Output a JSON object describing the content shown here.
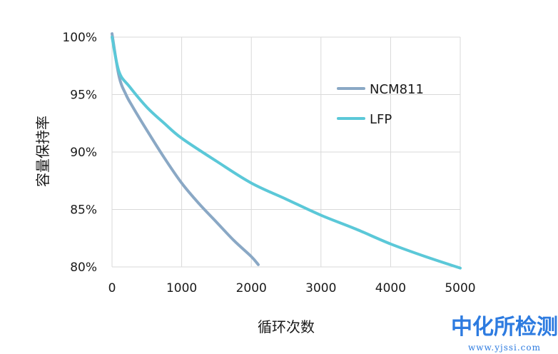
{
  "chart_data": {
    "type": "line",
    "xlabel": "循环次数",
    "ylabel": "容量保持率",
    "xlim": [
      0,
      5000
    ],
    "ylim": [
      80,
      100
    ],
    "x_ticks": [
      "0",
      "1000",
      "2000",
      "3000",
      "4000",
      "5000"
    ],
    "y_ticks": [
      "80%",
      "85%",
      "90%",
      "95%",
      "100%"
    ],
    "grid": "vertical and horizontal",
    "legend_position": "top-right",
    "series": [
      {
        "name": "NCM811",
        "color": "#8aa8c5",
        "points": [
          [
            0,
            100.3
          ],
          [
            100,
            96.6
          ],
          [
            200,
            95.0
          ],
          [
            300,
            93.9
          ],
          [
            500,
            91.9
          ],
          [
            750,
            89.5
          ],
          [
            1000,
            87.3
          ],
          [
            1250,
            85.5
          ],
          [
            1500,
            83.9
          ],
          [
            1750,
            82.3
          ],
          [
            2000,
            80.9
          ],
          [
            2100,
            80.2
          ]
        ]
      },
      {
        "name": "LFP",
        "color": "#5bc8d8",
        "points": [
          [
            0,
            100.0
          ],
          [
            100,
            97.0
          ],
          [
            250,
            95.7
          ],
          [
            500,
            93.9
          ],
          [
            750,
            92.5
          ],
          [
            1000,
            91.2
          ],
          [
            1500,
            89.2
          ],
          [
            2000,
            87.3
          ],
          [
            2500,
            85.9
          ],
          [
            3000,
            84.5
          ],
          [
            3500,
            83.3
          ],
          [
            4000,
            82.0
          ],
          [
            4500,
            80.9
          ],
          [
            5000,
            79.9
          ]
        ]
      }
    ]
  },
  "watermark": {
    "text": "中化所检测",
    "url": "www.yjssi.com"
  }
}
